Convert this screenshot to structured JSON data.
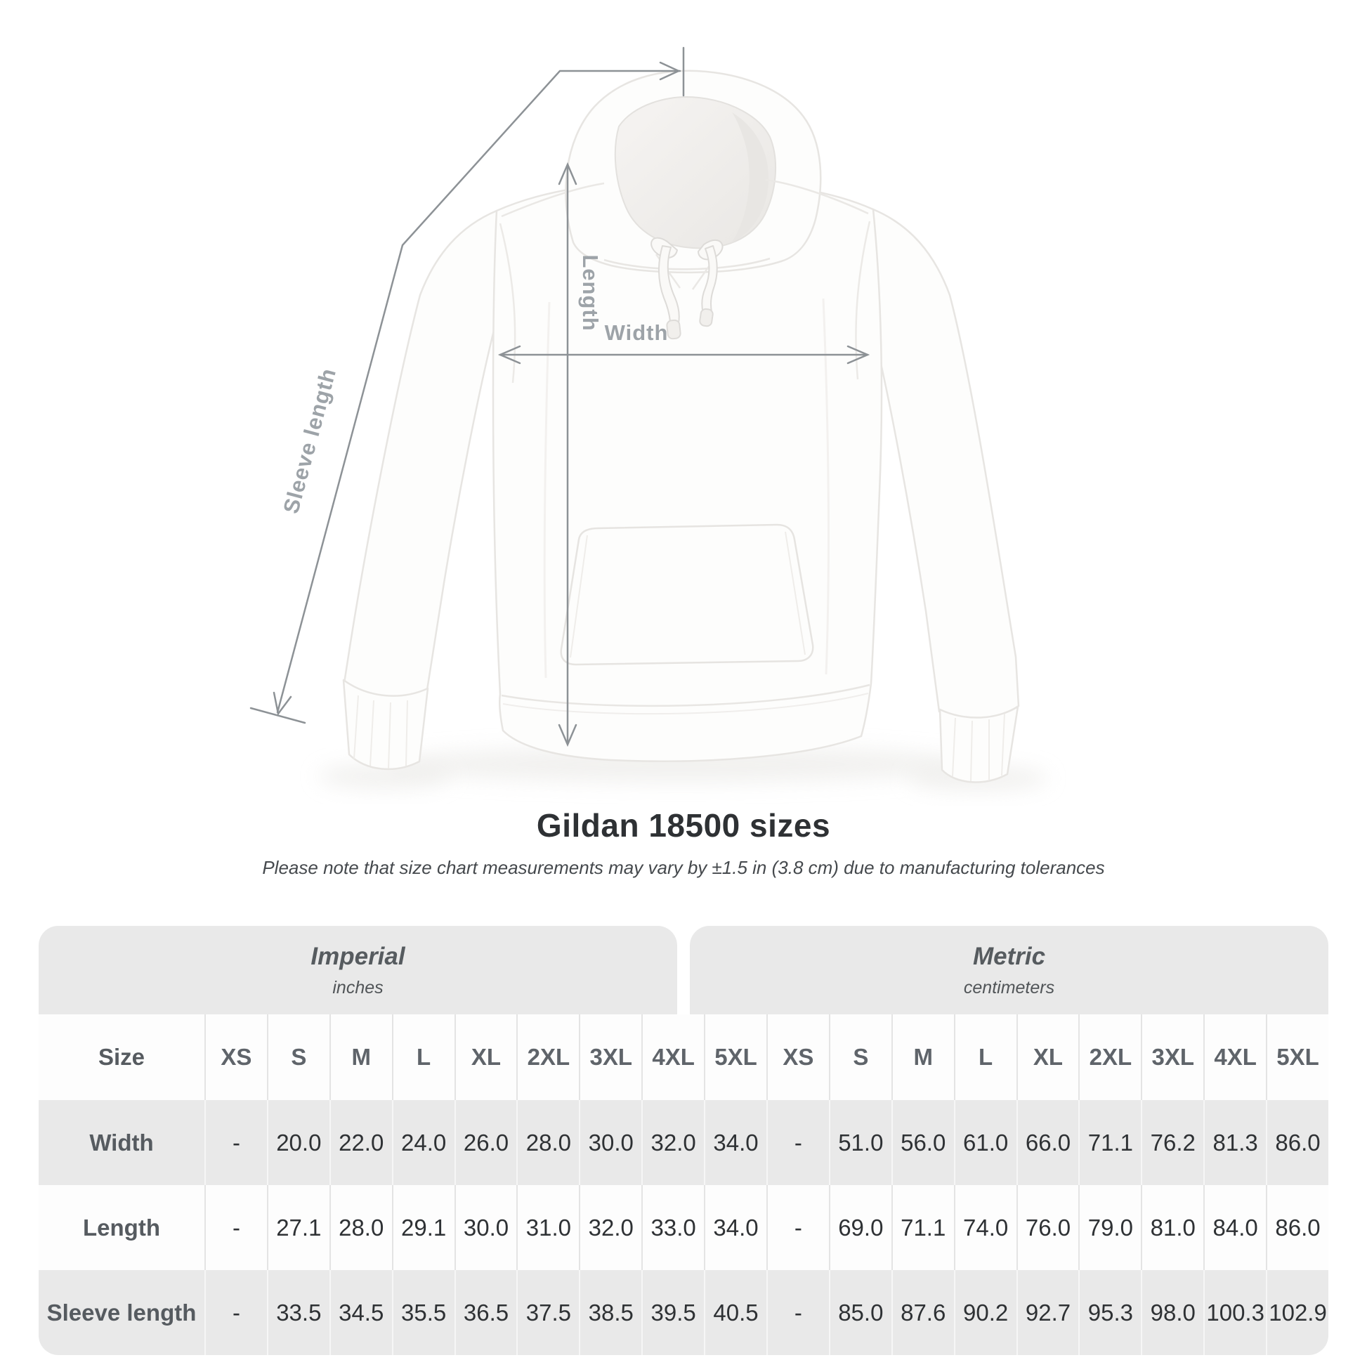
{
  "diagram": {
    "labels": {
      "length": "Length",
      "width": "Width",
      "sleeve": "Sleeve length"
    }
  },
  "title": "Gildan 18500 sizes",
  "subtitle": "Please note that size chart measurements may vary by ±1.5 in (3.8 cm) due to manufacturing tolerances",
  "table": {
    "groups": [
      {
        "name": "Imperial",
        "unit": "inches"
      },
      {
        "name": "Metric",
        "unit": "centimeters"
      }
    ],
    "size_label": "Size",
    "sizes": [
      "XS",
      "S",
      "M",
      "L",
      "XL",
      "2XL",
      "3XL",
      "4XL",
      "5XL"
    ],
    "rows": [
      {
        "label": "Width",
        "imperial": [
          "-",
          "20.0",
          "22.0",
          "24.0",
          "26.0",
          "28.0",
          "30.0",
          "32.0",
          "34.0"
        ],
        "metric": [
          "-",
          "51.0",
          "56.0",
          "61.0",
          "66.0",
          "71.1",
          "76.2",
          "81.3",
          "86.0"
        ]
      },
      {
        "label": "Length",
        "imperial": [
          "-",
          "27.1",
          "28.0",
          "29.1",
          "30.0",
          "31.0",
          "32.0",
          "33.0",
          "34.0"
        ],
        "metric": [
          "-",
          "69.0",
          "71.1",
          "74.0",
          "76.0",
          "79.0",
          "81.0",
          "84.0",
          "86.0"
        ]
      },
      {
        "label": "Sleeve length",
        "imperial": [
          "-",
          "33.5",
          "34.5",
          "35.5",
          "36.5",
          "37.5",
          "38.5",
          "39.5",
          "40.5"
        ],
        "metric": [
          "-",
          "85.0",
          "87.6",
          "90.2",
          "92.7",
          "95.3",
          "98.0",
          "100.3",
          "102.9"
        ]
      }
    ]
  },
  "colors": {
    "band_gray": "#e9e9e9",
    "row_alt_gray": "#e9e9e9",
    "value_text": "#2e3134",
    "label_text": "#565b60",
    "dimension_line": "#8d9296",
    "dimension_label": "#9da3a8",
    "title_text": "#2e3134"
  }
}
